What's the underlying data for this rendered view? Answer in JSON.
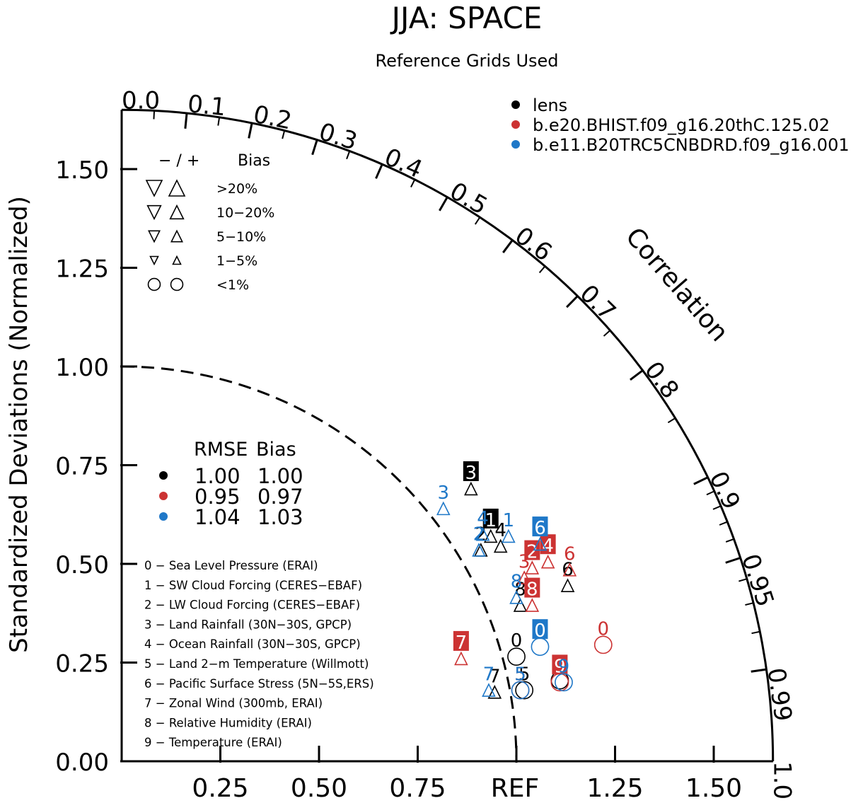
{
  "chart_data": {
    "type": "scatter",
    "chart_kind": "taylor-diagram",
    "title": "JJA: SPACE",
    "subtitle": "Reference Grids Used",
    "ylabel": "Standardized Deviations (Normalized)",
    "angular_label": "Correlation",
    "ref_label": "REF",
    "std_range": [
      0,
      1.65
    ],
    "y_ticks": [
      "0.00",
      "0.25",
      "0.50",
      "0.75",
      "1.00",
      "1.25",
      "1.50"
    ],
    "x_ticks": [
      "0.25",
      "0.50",
      "0.75",
      "1.25",
      "1.50"
    ],
    "correlation_ticks": [
      "0.0",
      "0.1",
      "0.2",
      "0.3",
      "0.4",
      "0.5",
      "0.6",
      "0.7",
      "0.8",
      "0.9",
      "0.95",
      "0.99",
      "1.0"
    ],
    "ref_arc_std": 1.0,
    "ref_arc_style": "dashed",
    "series": [
      {
        "name": "lens",
        "color": "#000000",
        "points": [
          {
            "label": "0",
            "x": 1.0,
            "y": 0.265,
            "marker": "circle",
            "boxed": false,
            "filled": false
          },
          {
            "label": "1",
            "x": 0.935,
            "y": 0.57,
            "marker": "up-triangle",
            "boxed": true,
            "filled": false
          },
          {
            "label": "2",
            "x": 0.91,
            "y": 0.535,
            "marker": "up-triangle",
            "boxed": false,
            "filled": false
          },
          {
            "label": "3",
            "x": 0.885,
            "y": 0.69,
            "marker": "up-triangle",
            "boxed": true,
            "filled": false
          },
          {
            "label": "4",
            "x": 0.96,
            "y": 0.545,
            "marker": "up-triangle",
            "boxed": false,
            "filled": false
          },
          {
            "label": "5",
            "x": 1.02,
            "y": 0.18,
            "marker": "circle",
            "boxed": false,
            "filled": false
          },
          {
            "label": "6",
            "x": 1.13,
            "y": 0.445,
            "marker": "up-triangle",
            "boxed": false,
            "filled": false
          },
          {
            "label": "7",
            "x": 0.945,
            "y": 0.175,
            "marker": "up-triangle",
            "boxed": false,
            "filled": false
          },
          {
            "label": "8",
            "x": 1.01,
            "y": 0.395,
            "marker": "up-triangle",
            "boxed": false,
            "filled": false
          },
          {
            "label": "9",
            "x": 1.11,
            "y": 0.205,
            "marker": "circle",
            "boxed": false,
            "filled": false
          }
        ]
      },
      {
        "name": "b.e20.BHIST.f09_g16.20thC.125.02",
        "color": "#cc3333",
        "points": [
          {
            "label": "0",
            "x": 1.22,
            "y": 0.295,
            "marker": "circle",
            "boxed": false,
            "filled": false
          },
          {
            "label": "2",
            "x": 1.04,
            "y": 0.49,
            "marker": "up-triangle",
            "boxed": true,
            "filled": false
          },
          {
            "label": "3",
            "x": 1.02,
            "y": 0.465,
            "marker": "up-triangle",
            "boxed": false,
            "filled": false
          },
          {
            "label": "4",
            "x": 1.08,
            "y": 0.505,
            "marker": "up-triangle",
            "boxed": true,
            "filled": false
          },
          {
            "label": "5",
            "x": 1.01,
            "y": 0.18,
            "marker": "circle",
            "boxed": false,
            "filled": false
          },
          {
            "label": "6",
            "x": 1.135,
            "y": 0.485,
            "marker": "up-triangle",
            "boxed": false,
            "filled": false
          },
          {
            "label": "7",
            "x": 0.86,
            "y": 0.26,
            "marker": "up-triangle",
            "boxed": true,
            "filled": false
          },
          {
            "label": "8",
            "x": 1.04,
            "y": 0.395,
            "marker": "up-triangle",
            "boxed": true,
            "filled": false
          },
          {
            "label": "9",
            "x": 1.11,
            "y": 0.2,
            "marker": "circle",
            "boxed": true,
            "filled": false
          }
        ]
      },
      {
        "name": "b.e11.B20TRC5CNBDRD.f09_g16.001",
        "color": "#1f78c8",
        "points": [
          {
            "label": "0",
            "x": 1.06,
            "y": 0.29,
            "marker": "circle",
            "boxed": true,
            "filled": false
          },
          {
            "label": "1",
            "x": 0.98,
            "y": 0.57,
            "marker": "up-triangle",
            "boxed": false,
            "filled": false
          },
          {
            "label": "2",
            "x": 0.905,
            "y": 0.535,
            "marker": "up-triangle",
            "boxed": false,
            "filled": false
          },
          {
            "label": "3",
            "x": 0.815,
            "y": 0.64,
            "marker": "up-triangle",
            "boxed": false,
            "filled": false
          },
          {
            "label": "4",
            "x": 0.915,
            "y": 0.575,
            "marker": "up-triangle",
            "boxed": false,
            "filled": false
          },
          {
            "label": "5",
            "x": 1.01,
            "y": 0.18,
            "marker": "circle",
            "boxed": false,
            "filled": false
          },
          {
            "label": "6",
            "x": 1.06,
            "y": 0.55,
            "marker": "up-triangle",
            "boxed": true,
            "filled": false
          },
          {
            "label": "7",
            "x": 0.93,
            "y": 0.18,
            "marker": "up-triangle",
            "boxed": false,
            "filled": false
          },
          {
            "label": "8",
            "x": 1.0,
            "y": 0.415,
            "marker": "up-triangle",
            "boxed": false,
            "filled": false
          },
          {
            "label": "9",
            "x": 1.12,
            "y": 0.2,
            "marker": "circle",
            "boxed": false,
            "filled": false
          }
        ]
      }
    ],
    "legend": {
      "placement": "top-right",
      "items": [
        {
          "name": "lens",
          "color": "#000000"
        },
        {
          "name": "b.e20.BHIST.f09_g16.20thC.125.02",
          "color": "#cc3333"
        },
        {
          "name": "b.e11.B20TRC5CNBDRD.f09_g16.001",
          "color": "#1f78c8"
        }
      ]
    },
    "bias_key": {
      "header_signs": "− / +",
      "header_label": "Bias",
      "rows": [
        {
          "label": ">20%",
          "marker": "triangle",
          "size": 1.0
        },
        {
          "label": "10−20%",
          "marker": "triangle",
          "size": 0.85
        },
        {
          "label": "5−10%",
          "marker": "triangle",
          "size": 0.7
        },
        {
          "label": "1−5%",
          "marker": "triangle",
          "size": 0.5
        },
        {
          "label": "<1%",
          "marker": "circle",
          "size": 0.7
        }
      ]
    },
    "rmse_bias_table": {
      "headers": [
        "RMSE",
        "Bias"
      ],
      "rows": [
        {
          "color": "#000000",
          "rmse": "1.00",
          "bias": "1.00"
        },
        {
          "color": "#cc3333",
          "rmse": "0.95",
          "bias": "0.97"
        },
        {
          "color": "#1f78c8",
          "rmse": "1.04",
          "bias": "1.03"
        }
      ]
    },
    "variable_list": [
      "0 − Sea Level Pressure (ERAI)",
      "1 − SW Cloud Forcing (CERES−EBAF)",
      "2 − LW Cloud Forcing (CERES−EBAF)",
      "3 − Land Rainfall (30N−30S, GPCP)",
      "4 − Ocean Rainfall (30N−30S, GPCP)",
      "5 − Land 2−m Temperature (Willmott)",
      "6 − Pacific Surface Stress (5N−5S,ERS)",
      "7 − Zonal Wind (300mb, ERAI)",
      "8 − Relative Humidity (ERAI)",
      "9 − Temperature (ERAI)"
    ]
  }
}
